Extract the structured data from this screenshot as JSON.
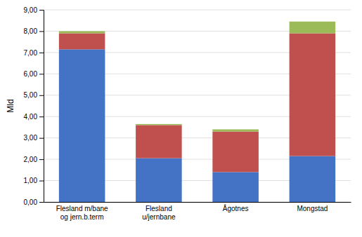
{
  "chart_data": {
    "type": "bar",
    "stacked": true,
    "categories": [
      "Flesland m/bane\nog jern.b.term",
      "Flesland\nu/jernbane",
      "Ågotnes",
      "Mongstad"
    ],
    "series": [
      {
        "color": "#4472C4",
        "values": [
          7.15,
          2.05,
          1.4,
          2.15
        ]
      },
      {
        "color": "#C0504D",
        "values": [
          0.75,
          1.55,
          1.9,
          5.75
        ]
      },
      {
        "color": "#9BBB59",
        "values": [
          0.1,
          0.05,
          0.1,
          0.55
        ]
      }
    ],
    "ylabel": "Mld",
    "ylim": [
      0,
      9.0
    ],
    "yticks": [
      {
        "value": 0.0,
        "label": "0,00"
      },
      {
        "value": 1.0,
        "label": "1,00"
      },
      {
        "value": 2.0,
        "label": "2,00"
      },
      {
        "value": 3.0,
        "label": "3,00"
      },
      {
        "value": 4.0,
        "label": "4,00"
      },
      {
        "value": 5.0,
        "label": "5,00"
      },
      {
        "value": 6.0,
        "label": "6,00"
      },
      {
        "value": 7.0,
        "label": "7,00"
      },
      {
        "value": 8.0,
        "label": "8,00"
      },
      {
        "value": 9.0,
        "label": "9,00"
      }
    ],
    "grid": true
  }
}
